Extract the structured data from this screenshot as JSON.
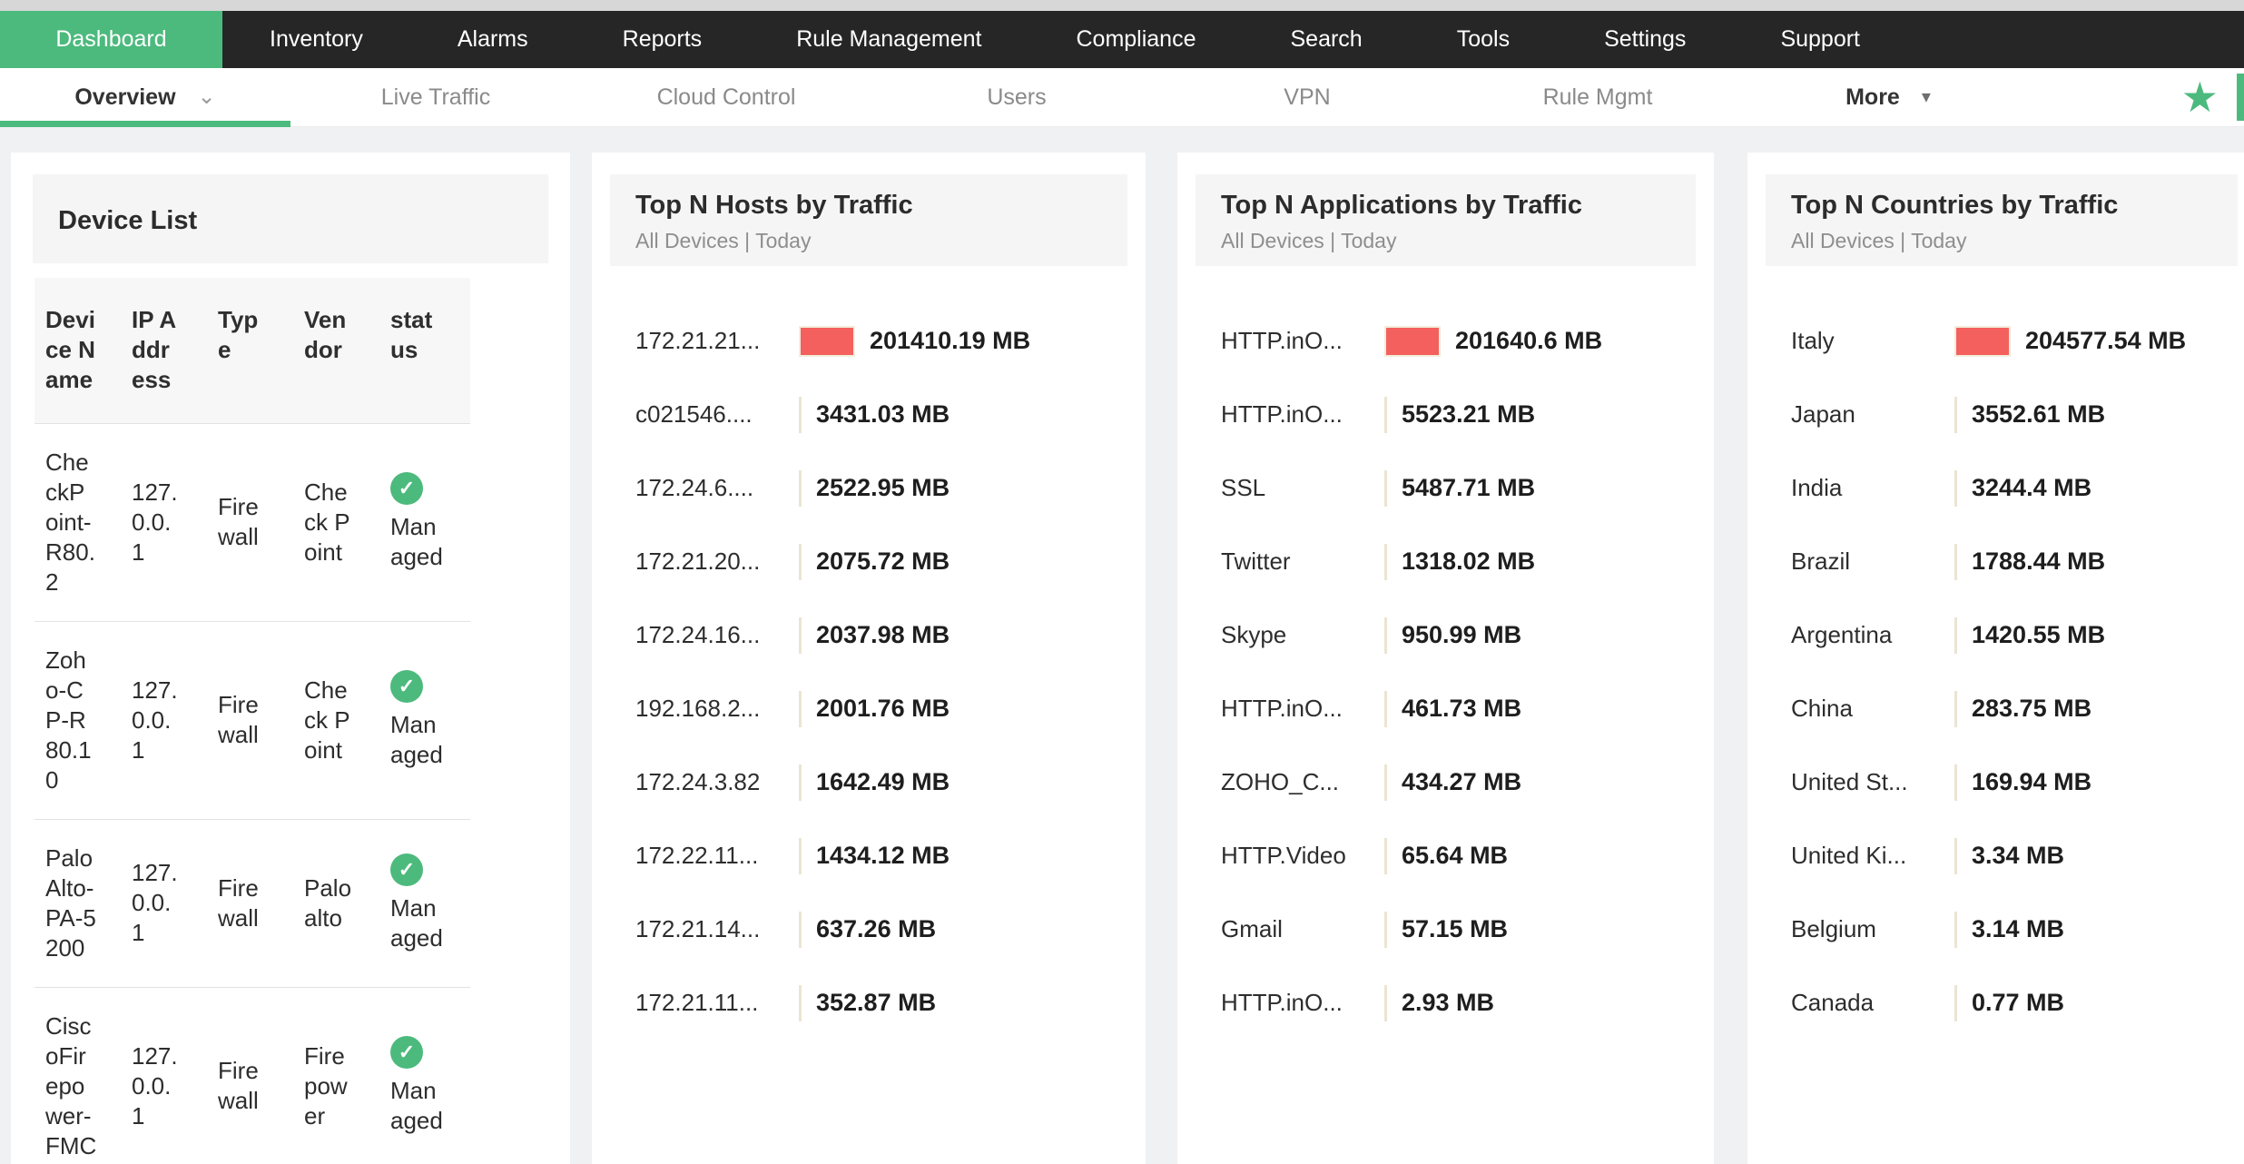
{
  "colors": {
    "accent_green": "#4cba7d",
    "bar_red": "#f4605d",
    "topnav_bg": "#262626"
  },
  "topnav": {
    "items": [
      {
        "label": "Dashboard",
        "active": true
      },
      {
        "label": "Inventory"
      },
      {
        "label": "Alarms"
      },
      {
        "label": "Reports"
      },
      {
        "label": "Rule Management"
      },
      {
        "label": "Compliance"
      },
      {
        "label": "Search"
      },
      {
        "label": "Tools"
      },
      {
        "label": "Settings"
      },
      {
        "label": "Support"
      }
    ]
  },
  "subnav": {
    "items": [
      {
        "label": "Overview",
        "active": true,
        "chevron": true
      },
      {
        "label": "Live Traffic"
      },
      {
        "label": "Cloud Control"
      },
      {
        "label": "Users"
      },
      {
        "label": "VPN"
      },
      {
        "label": "Rule Mgmt"
      },
      {
        "label": "More",
        "emphasis": true,
        "caret": true
      }
    ],
    "favorite_icon": "star-icon",
    "star_glyph": "★",
    "chevron_glyph": "⌄",
    "caret_glyph": "▾"
  },
  "device_list": {
    "title": "Device List",
    "columns": [
      "Device Name",
      "IP Address",
      "Type",
      "Vendor",
      "status"
    ],
    "status_icon": "check-circle-icon",
    "check_glyph": "✓",
    "rows": [
      {
        "name": "CheckPoint-R80.2",
        "ip": "127.0.0.1",
        "type": "Firewall",
        "vendor": "Check Point",
        "status": "Managed"
      },
      {
        "name": "Zoho-CP-R80.10",
        "ip": "127.0.0.1",
        "type": "Firewall",
        "vendor": "Check Point",
        "status": "Managed"
      },
      {
        "name": "PaloAlto-PA-5200",
        "ip": "127.0.0.1",
        "type": "Firewall",
        "vendor": "Paloalto",
        "status": "Managed"
      },
      {
        "name": "CiscoFirepower-FMC",
        "ip": "127.0.0.1",
        "type": "Firewall",
        "vendor": "Firepower",
        "status": "Managed"
      }
    ]
  },
  "chart_data": [
    {
      "type": "bar",
      "orientation": "horizontal",
      "title": "Top N Hosts by Traffic",
      "subtitle": "All Devices | Today",
      "unit": "MB",
      "bar_color": "#f4605d",
      "categories": [
        "172.21.21...",
        "c021546....",
        "172.24.6....",
        "172.21.20...",
        "172.24.16...",
        "192.168.2...",
        "172.24.3.82",
        "172.22.11...",
        "172.21.14...",
        "172.21.11..."
      ],
      "values": [
        201410.19,
        3431.03,
        2522.95,
        2075.72,
        2037.98,
        2001.76,
        1642.49,
        1434.12,
        637.26,
        352.87
      ]
    },
    {
      "type": "bar",
      "orientation": "horizontal",
      "title": "Top N Applications by Traffic",
      "subtitle": "All Devices | Today",
      "unit": "MB",
      "bar_color": "#f4605d",
      "categories": [
        "HTTP.inO...",
        "HTTP.inO...",
        "SSL",
        "Twitter",
        "Skype",
        "HTTP.inO...",
        "ZOHO_C...",
        "HTTP.Video",
        "Gmail",
        "HTTP.inO..."
      ],
      "values": [
        201640.6,
        5523.21,
        5487.71,
        1318.02,
        950.99,
        461.73,
        434.27,
        65.64,
        57.15,
        2.93
      ]
    },
    {
      "type": "bar",
      "orientation": "horizontal",
      "title": "Top N Countries by Traffic",
      "subtitle": "All Devices | Today",
      "unit": "MB",
      "bar_color": "#f4605d",
      "categories": [
        "Italy",
        "Japan",
        "India",
        "Brazil",
        "Argentina",
        "China",
        "United St...",
        "United Ki...",
        "Belgium",
        "Canada"
      ],
      "values": [
        204577.54,
        3552.61,
        3244.4,
        1788.44,
        1420.55,
        283.75,
        169.94,
        3.34,
        3.14,
        0.77
      ]
    }
  ]
}
